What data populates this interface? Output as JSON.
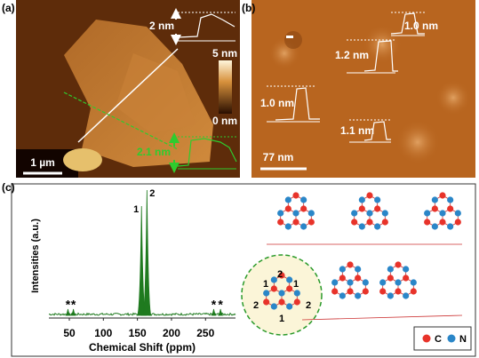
{
  "panels": {
    "a": {
      "label": "(a)",
      "scale_bar": "1 µm",
      "colorbar": {
        "max": "5 nm",
        "min": "0 nm"
      },
      "heights": [
        "2 nm",
        "2.1 nm"
      ]
    },
    "b": {
      "label": "(b)",
      "scale_bar": "77 nm",
      "heights": [
        "1.0 nm",
        "1.2 nm",
        "1.0 nm",
        "1.1 nm"
      ]
    },
    "c": {
      "label": "(c)",
      "spectrum": {
        "xlabel": "Chemical Shift (ppm)",
        "ylabel": "Intensities (a.u.)",
        "xlim": [
          20,
          294
        ],
        "xticks": [
          50,
          100,
          150,
          200,
          250
        ],
        "peaks": [
          {
            "label": "1",
            "x": 156
          },
          {
            "label": "2",
            "x": 164
          }
        ],
        "sidebands": [
          {
            "label": "*",
            "x": 48
          },
          {
            "label": "*",
            "x": 56
          },
          {
            "label": "*",
            "x": 262
          },
          {
            "label": "*",
            "x": 272
          }
        ]
      },
      "structure": {
        "site_labels": [
          "2",
          "1",
          "1",
          "2",
          "1",
          "2"
        ],
        "legend": [
          "C",
          "N"
        ]
      }
    }
  }
}
